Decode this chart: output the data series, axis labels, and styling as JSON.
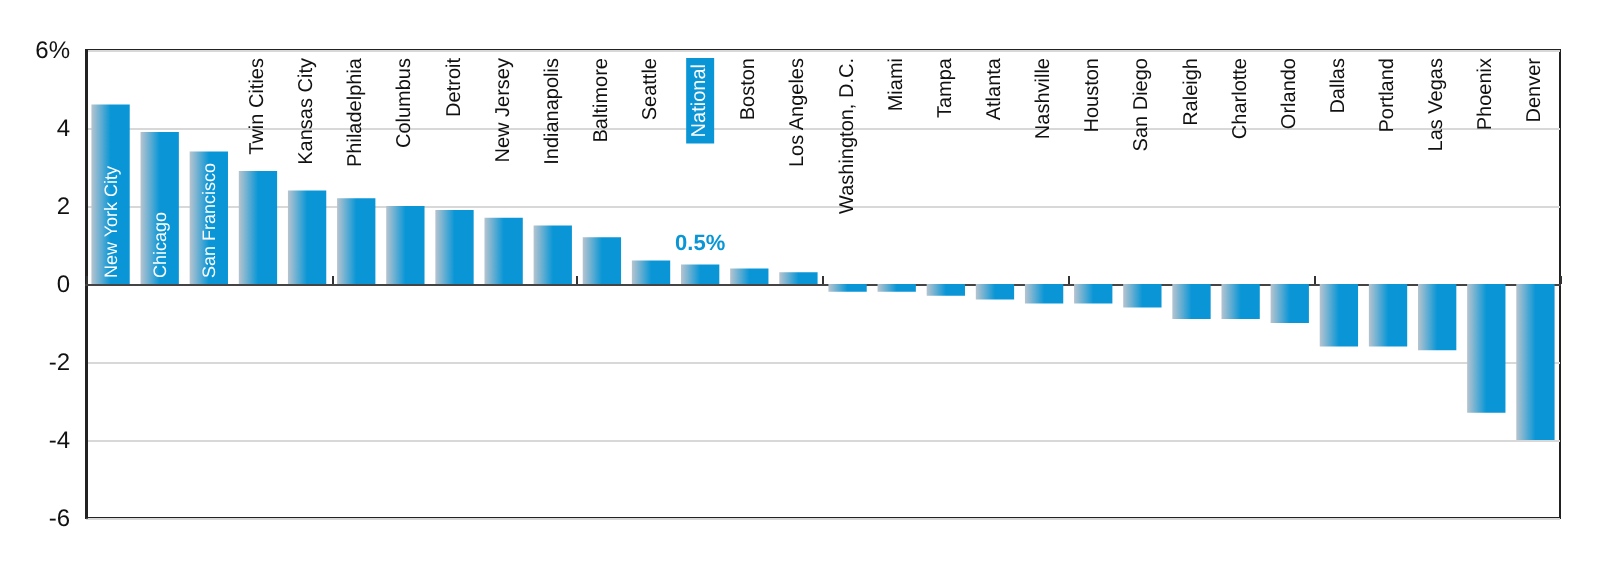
{
  "chart_data": {
    "type": "bar",
    "categories": [
      "New York City",
      "Chicago",
      "San Francisco",
      "Twin Cities",
      "Kansas City",
      "Philadelphia",
      "Columbus",
      "Detroit",
      "New Jersey",
      "Indianapolis",
      "Baltimore",
      "Seattle",
      "National",
      "Boston",
      "Los Angeles",
      "Washington, D.C.",
      "Miami",
      "Tampa",
      "Atlanta",
      "Nashville",
      "Houston",
      "San Diego",
      "Raleigh",
      "Charlotte",
      "Orlando",
      "Dallas",
      "Portland",
      "Las Vegas",
      "Phoenix",
      "Denver"
    ],
    "values": [
      4.6,
      3.9,
      3.4,
      2.9,
      2.4,
      2.2,
      2.0,
      1.9,
      1.7,
      1.5,
      1.2,
      0.6,
      0.5,
      0.4,
      0.3,
      -0.2,
      -0.2,
      -0.3,
      -0.4,
      -0.5,
      -0.5,
      -0.6,
      -0.9,
      -0.9,
      -1.0,
      -1.6,
      -1.6,
      -1.7,
      -3.3,
      -4.0
    ],
    "value_labels": [
      null,
      null,
      null,
      null,
      null,
      null,
      null,
      null,
      null,
      null,
      null,
      null,
      "0.5%",
      null,
      null,
      null,
      null,
      null,
      null,
      null,
      null,
      null,
      null,
      null,
      null,
      null,
      null,
      null,
      null,
      null
    ],
    "color": "#0a96d6",
    "ylim": [
      -6,
      6
    ],
    "yticks": [
      -6,
      -4,
      -2,
      0,
      2,
      4,
      {
        "value": 6,
        "label": "6%"
      }
    ],
    "grid": "y"
  }
}
